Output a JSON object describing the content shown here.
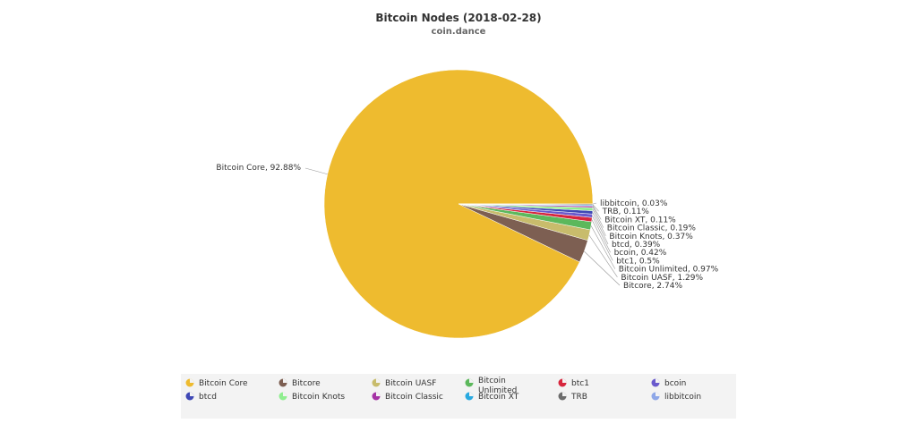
{
  "chart_data": {
    "type": "pie",
    "title": "Bitcoin Nodes (2018-02-28)",
    "subtitle": "coin.dance",
    "slices": [
      {
        "name": "Bitcoin Core",
        "value": 92.88,
        "label": "Bitcoin Core, 92.88%",
        "color": "#eebb2f"
      },
      {
        "name": "Bitcore",
        "value": 2.74,
        "label": "Bitcore, 2.74%",
        "color": "#7d5f52"
      },
      {
        "name": "Bitcoin UASF",
        "value": 1.29,
        "label": "Bitcoin UASF, 1.29%",
        "color": "#c8bc6c"
      },
      {
        "name": "Bitcoin Unlimited",
        "value": 0.97,
        "label": "Bitcoin Unlimited, 0.97%",
        "color": "#5cb85c"
      },
      {
        "name": "btc1",
        "value": 0.5,
        "label": "btc1, 0.5%",
        "color": "#d7263d"
      },
      {
        "name": "bcoin",
        "value": 0.42,
        "label": "bcoin, 0.42%",
        "color": "#6a5acd"
      },
      {
        "name": "btcd",
        "value": 0.39,
        "label": "btcd, 0.39%",
        "color": "#3f48b5"
      },
      {
        "name": "Bitcoin Knots",
        "value": 0.37,
        "label": "Bitcoin Knots, 0.37%",
        "color": "#90ee90"
      },
      {
        "name": "Bitcoin Classic",
        "value": 0.19,
        "label": "Bitcoin Classic, 0.19%",
        "color": "#a532a5"
      },
      {
        "name": "Bitcoin XT",
        "value": 0.11,
        "label": "Bitcoin XT, 0.11%",
        "color": "#29a9e0"
      },
      {
        "name": "TRB",
        "value": 0.11,
        "label": "TRB, 0.11%",
        "color": "#6c6c6c"
      },
      {
        "name": "libbitcoin",
        "value": 0.03,
        "label": "libbitcoin, 0.03%",
        "color": "#8ea7e8"
      }
    ],
    "legend": {
      "placement": "bottom",
      "items": [
        "Bitcoin Core",
        "Bitcore",
        "Bitcoin UASF",
        "Bitcoin Unlimited",
        "btc1",
        "bcoin",
        "btcd",
        "Bitcoin Knots",
        "Bitcoin Classic",
        "Bitcoin XT",
        "TRB",
        "libbitcoin"
      ]
    }
  }
}
